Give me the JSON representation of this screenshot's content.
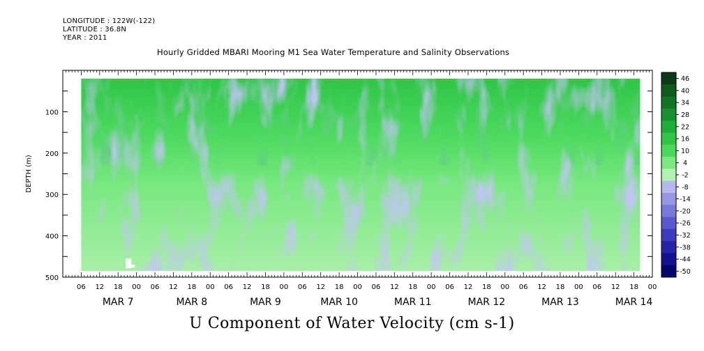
{
  "header": {
    "longitude": "LONGITUDE : 122W(-122)",
    "latitude": "LATITUDE : 36.8N",
    "year": "YEAR : 2011"
  },
  "chart_data": {
    "type": "heatmap",
    "title": "Hourly Gridded MBARI Mooring M1 Sea Water Temperature and Salinity Observations",
    "xlabel": "U Component of Water Velocity (cm s-1)",
    "ylabel": "DEPTH (m)",
    "y_ticks": [
      100,
      200,
      300,
      400,
      500
    ],
    "y_range": [
      20,
      500
    ],
    "y_inverted": true,
    "x_hour_ticks": [
      "06",
      "12",
      "18",
      "00",
      "06",
      "12",
      "18",
      "00",
      "06",
      "12",
      "18",
      "00",
      "06",
      "12",
      "18",
      "00",
      "06",
      "12",
      "18",
      "00",
      "06",
      "12",
      "18",
      "00",
      "06",
      "12",
      "18",
      "00",
      "06",
      "12",
      "18",
      "00"
    ],
    "x_day_labels": [
      "MAR  7",
      "MAR  8",
      "MAR  9",
      "MAR 10",
      "MAR 11",
      "MAR 12",
      "MAR 13",
      "MAR 14"
    ],
    "x_range_hours": [
      0,
      192
    ],
    "data_range_hours": [
      6,
      188
    ],
    "data_depth_range": [
      20,
      485
    ],
    "colorbar": {
      "levels": [
        "46",
        "40",
        "34",
        "28",
        "22",
        "16",
        "10",
        "4",
        "-2",
        "-8",
        "-14",
        "-20",
        "-26",
        "-32",
        "-38",
        "-44",
        "-50"
      ],
      "colors": [
        "#0b3b14",
        "#0f5a1c",
        "#137524",
        "#17912d",
        "#1fae38",
        "#2fc546",
        "#4ad95c",
        "#78e87f",
        "#b1f2b0",
        "#b8b8ee",
        "#9696e6",
        "#7777dc",
        "#5757d0",
        "#3b3bc0",
        "#2424aa",
        "#121290",
        "#050570"
      ]
    }
  }
}
